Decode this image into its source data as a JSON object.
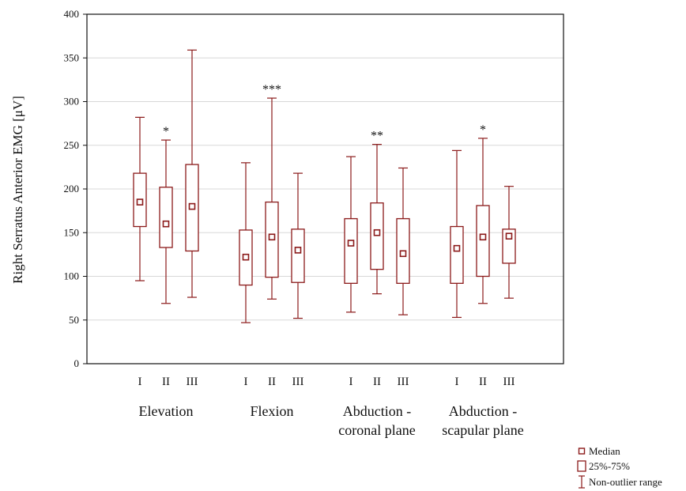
{
  "chart_data": {
    "type": "box",
    "ylabel": "Right Serratus Anterior EMG [μV]",
    "ylim": [
      0,
      400
    ],
    "yticks": [
      0,
      50,
      100,
      150,
      200,
      250,
      300,
      350,
      400
    ],
    "grid": true,
    "color": "#8b1a1a",
    "groups": [
      {
        "label_lines": [
          "Elevation"
        ],
        "boxes": [
          {
            "category": "I",
            "min": 95,
            "q1": 157,
            "median": 185,
            "q3": 218,
            "max": 282,
            "sig": ""
          },
          {
            "category": "II",
            "min": 69,
            "q1": 133,
            "median": 160,
            "q3": 202,
            "max": 256,
            "sig": "*"
          },
          {
            "category": "III",
            "min": 76,
            "q1": 129,
            "median": 180,
            "q3": 228,
            "max": 359,
            "sig": ""
          }
        ]
      },
      {
        "label_lines": [
          "Flexion"
        ],
        "boxes": [
          {
            "category": "I",
            "min": 47,
            "q1": 90,
            "median": 122,
            "q3": 153,
            "max": 230,
            "sig": ""
          },
          {
            "category": "II",
            "min": 74,
            "q1": 99,
            "median": 145,
            "q3": 185,
            "max": 304,
            "sig": "***"
          },
          {
            "category": "III",
            "min": 52,
            "q1": 93,
            "median": 130,
            "q3": 154,
            "max": 218,
            "sig": ""
          }
        ]
      },
      {
        "label_lines": [
          "Abduction -",
          "coronal plane"
        ],
        "boxes": [
          {
            "category": "I",
            "min": 59,
            "q1": 92,
            "median": 138,
            "q3": 166,
            "max": 237,
            "sig": ""
          },
          {
            "category": "II",
            "min": 80,
            "q1": 108,
            "median": 150,
            "q3": 184,
            "max": 251,
            "sig": "**"
          },
          {
            "category": "III",
            "min": 56,
            "q1": 92,
            "median": 126,
            "q3": 166,
            "max": 224,
            "sig": ""
          }
        ]
      },
      {
        "label_lines": [
          "Abduction -",
          "scapular plane"
        ],
        "boxes": [
          {
            "category": "I",
            "min": 53,
            "q1": 92,
            "median": 132,
            "q3": 157,
            "max": 244,
            "sig": ""
          },
          {
            "category": "II",
            "min": 69,
            "q1": 100,
            "median": 145,
            "q3": 181,
            "max": 258,
            "sig": "*"
          },
          {
            "category": "III",
            "min": 75,
            "q1": 115,
            "median": 146,
            "q3": 154,
            "max": 203,
            "sig": ""
          }
        ]
      }
    ],
    "legend": {
      "position": "bottom-right",
      "items": [
        "Median",
        "25%-75%",
        "Non-outlier range"
      ]
    }
  }
}
